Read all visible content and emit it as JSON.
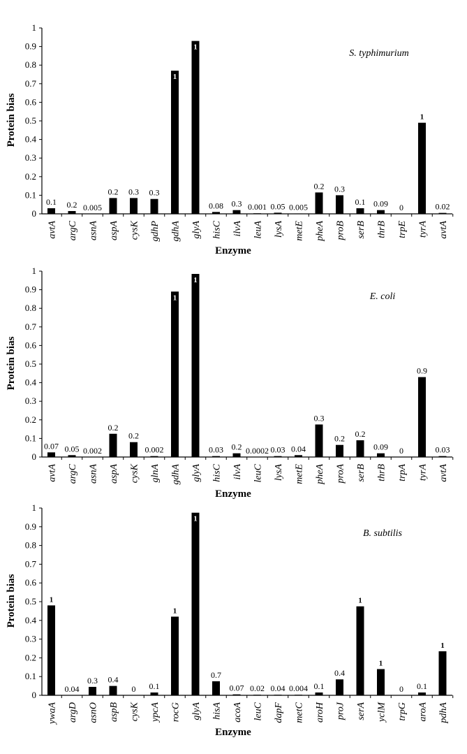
{
  "chart_data": [
    {
      "type": "bar",
      "title": "S. typhimurium",
      "xlabel": "Enzyme",
      "ylabel": "Protein bias",
      "ylim": [
        0,
        1
      ],
      "yticks": [
        "0",
        "0.1",
        "0.2",
        "0.3",
        "0.4",
        "0.5",
        "0.6",
        "0.7",
        "0.8",
        "0.9",
        "1"
      ],
      "categories": [
        "avtA",
        "argC",
        "asnA",
        "aspA",
        "cysK",
        "gdhP",
        "gdhA",
        "glyA",
        "hisC",
        "ilvA",
        "leuA",
        "lysA",
        "metE",
        "pheA",
        "proB",
        "serB",
        "thrB",
        "trpE",
        "tyrA",
        "avtA"
      ],
      "values": [
        0.03,
        0.015,
        0.0,
        0.085,
        0.085,
        0.08,
        0.77,
        0.93,
        0.01,
        0.02,
        0.003,
        0.006,
        0.002,
        0.115,
        0.1,
        0.03,
        0.02,
        0.0,
        0.49,
        0.005
      ],
      "data_labels": [
        "0.1",
        "0.2",
        "0.005",
        "0.2",
        "0.3",
        "0.3",
        "1",
        "1",
        "0.08",
        "0.3",
        "0.001",
        "0.05",
        "0.005",
        "0.2",
        "0.3",
        "0.1",
        "0.09",
        "0",
        "1",
        "0.02"
      ]
    },
    {
      "type": "bar",
      "title": "E. coli",
      "xlabel": "Enzyme",
      "ylabel": "Protein bias",
      "ylim": [
        0,
        1
      ],
      "yticks": [
        "0",
        "0.1",
        "0.2",
        "0.3",
        "0.4",
        "0.5",
        "0.6",
        "0.7",
        "0.8",
        "0.9",
        "1"
      ],
      "categories": [
        "avtA",
        "argC",
        "asnA",
        "aspA",
        "cysK",
        "glnA",
        "gdhA",
        "glyA",
        "hisC",
        "ilvA",
        "leuC",
        "lysA",
        "metE",
        "pheA",
        "proA",
        "serB",
        "thrB",
        "trpA",
        "tyrA",
        "avtA"
      ],
      "values": [
        0.025,
        0.01,
        0.0,
        0.125,
        0.08,
        0.005,
        0.89,
        0.985,
        0.005,
        0.02,
        0.0,
        0.005,
        0.01,
        0.175,
        0.065,
        0.09,
        0.02,
        0.0,
        0.43,
        0.005
      ],
      "data_labels": [
        "0.07",
        "0.05",
        "0.002",
        "0.2",
        "0.2",
        "0.002",
        "1",
        "1",
        "0.03",
        "0.2",
        "0.0002",
        "0.03",
        "0.04",
        "0.3",
        "0.2",
        "0.2",
        "0.09",
        "0",
        "0.9",
        "0.03"
      ]
    },
    {
      "type": "bar",
      "title": "B. subtilis",
      "xlabel": "Enzyme",
      "ylabel": "Protein bias",
      "ylim": [
        0,
        1
      ],
      "yticks": [
        "0",
        "0.1",
        "0.2",
        "0.3",
        "0.4",
        "0.5",
        "0.6",
        "0.7",
        "0.8",
        "0.9",
        "1"
      ],
      "categories": [
        "ywaA",
        "argD",
        "asnO",
        "aspB",
        "cysK",
        "ypcA",
        "rocG",
        "glyA",
        "hisA",
        "acoA",
        "leuC",
        "dapF",
        "metC",
        "aroH",
        "proJ",
        "serA",
        "yclM",
        "trpG",
        "aroA",
        "pdhA"
      ],
      "values": [
        0.48,
        0.0,
        0.045,
        0.05,
        0.0,
        0.015,
        0.42,
        0.975,
        0.075,
        0.005,
        0.003,
        0.003,
        0.003,
        0.015,
        0.085,
        0.475,
        0.14,
        0.0,
        0.015,
        0.235
      ],
      "data_labels": [
        "1",
        "0.04",
        "0.3",
        "0.4",
        "0",
        "0.1",
        "1",
        "1",
        "0.7",
        "0.07",
        "0.02",
        "0.04",
        "0.004",
        "0.1",
        "0.4",
        "1",
        "1",
        "0",
        "0.1",
        "1"
      ]
    }
  ]
}
